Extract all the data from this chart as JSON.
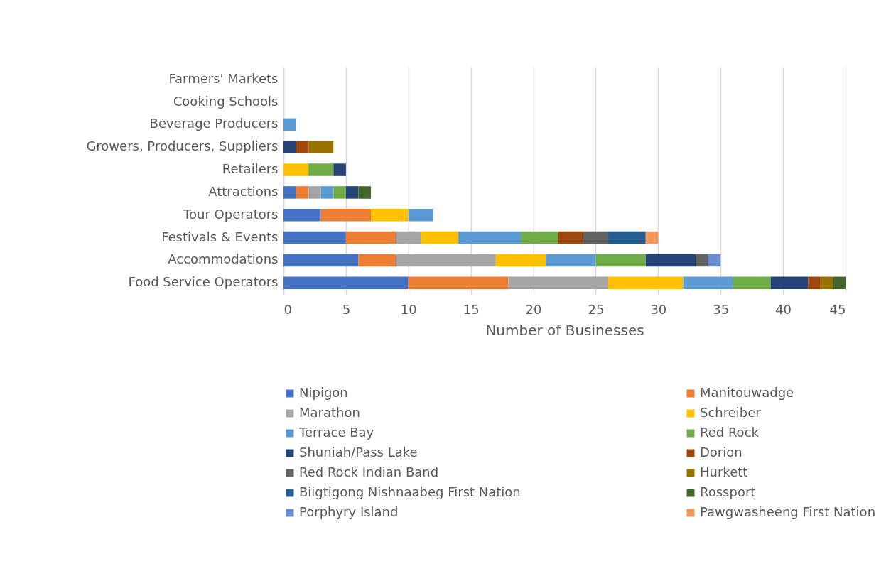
{
  "chart_data": {
    "type": "bar",
    "orientation": "horizontal",
    "stacked": true,
    "xlabel": "Number of Businesses",
    "categories": [
      "Farmers' Markets",
      "Cooking Schools",
      "Beverage Producers",
      "Growers, Producers, Suppliers",
      "Retailers",
      "Attractions",
      "Tour Operators",
      "Festivals & Events",
      "Accommodations",
      "Food Service Operators"
    ],
    "series": [
      {
        "name": "Nipigon",
        "color": "#4472c4",
        "values": [
          null,
          null,
          null,
          null,
          null,
          1,
          3,
          5,
          6,
          10
        ]
      },
      {
        "name": "Manitouwadge",
        "color": "#ed7d31",
        "values": [
          null,
          null,
          null,
          null,
          null,
          1,
          4,
          4,
          3,
          8
        ]
      },
      {
        "name": "Marathon",
        "color": "#a5a5a5",
        "values": [
          null,
          null,
          null,
          null,
          null,
          1,
          null,
          2,
          8,
          8
        ]
      },
      {
        "name": "Schreiber",
        "color": "#ffc000",
        "values": [
          null,
          null,
          null,
          null,
          2,
          null,
          3,
          3,
          4,
          6
        ]
      },
      {
        "name": "Terrace Bay",
        "color": "#5b9bd5",
        "values": [
          null,
          null,
          1,
          null,
          null,
          1,
          2,
          5,
          4,
          4
        ]
      },
      {
        "name": "Red Rock",
        "color": "#70ad47",
        "values": [
          null,
          null,
          null,
          null,
          2,
          1,
          null,
          3,
          4,
          3
        ]
      },
      {
        "name": "Shuniah/Pass Lake",
        "color": "#264478",
        "values": [
          null,
          null,
          null,
          1,
          1,
          1,
          null,
          null,
          4,
          3
        ]
      },
      {
        "name": "Dorion",
        "color": "#9e480e",
        "values": [
          null,
          null,
          null,
          1,
          null,
          null,
          null,
          2,
          null,
          1
        ]
      },
      {
        "name": "Red Rock Indian Band",
        "color": "#636363",
        "values": [
          null,
          null,
          null,
          null,
          null,
          null,
          null,
          2,
          1,
          null
        ]
      },
      {
        "name": "Hurkett",
        "color": "#997300",
        "values": [
          null,
          null,
          null,
          2,
          null,
          null,
          null,
          null,
          null,
          1
        ]
      },
      {
        "name": "Biigtigong Nishnaabeg First Nation",
        "color": "#255e91",
        "values": [
          null,
          null,
          null,
          null,
          null,
          null,
          null,
          3,
          null,
          null
        ]
      },
      {
        "name": "Rossport",
        "color": "#43682b",
        "values": [
          null,
          null,
          null,
          null,
          null,
          1,
          null,
          null,
          null,
          1
        ]
      },
      {
        "name": "Porphyry Island",
        "color": "#698ed0",
        "values": [
          null,
          null,
          null,
          null,
          null,
          null,
          null,
          null,
          1,
          null
        ]
      },
      {
        "name": "Pawgwasheeng First Nation",
        "color": "#f1975a",
        "values": [
          null,
          null,
          null,
          null,
          null,
          null,
          null,
          1,
          null,
          null
        ]
      }
    ],
    "xlim": [
      0,
      45
    ],
    "xticks": [
      0,
      5,
      10,
      15,
      20,
      25,
      30,
      35,
      40,
      45
    ],
    "grid": "x",
    "legend": "bottom"
  }
}
